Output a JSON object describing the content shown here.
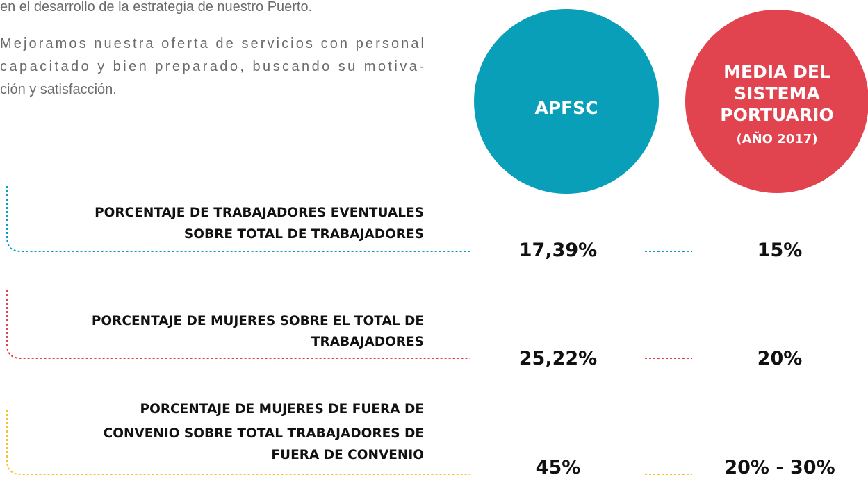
{
  "intro": {
    "cut_line": "en el desarrollo de la estrategia de nuestro Puerto.",
    "paragraph_lines": [
      "Mejoramos nuestra oferta de servicios con personal",
      "capacitado y bien preparado, buscando su motiva-",
      "ción y satisfacción."
    ]
  },
  "columns": {
    "apfsc": {
      "label": "APFSC",
      "color": "#0a9fb9"
    },
    "media": {
      "label_lines": [
        "MEDIA DEL",
        "SISTEMA",
        "PORTUARIO"
      ],
      "note": "(AÑO 2017)",
      "color": "#e1434f"
    }
  },
  "rows": [
    {
      "label_lines": [
        "PORCENTAJE DE TRABAJADORES EVENTUALES",
        "SOBRE TOTAL DE TRABAJADORES"
      ],
      "apfsc": "17,39%",
      "media": "15%",
      "color": "#0a9fb9"
    },
    {
      "label_lines": [
        "PORCENTAJE DE MUJERES SOBRE EL TOTAL DE",
        "TRABAJADORES"
      ],
      "apfsc": "25,22%",
      "media": "20%",
      "color": "#e1434f"
    },
    {
      "label_lines": [
        "PORCENTAJE DE MUJERES DE FUERA DE",
        "CONVENIO SOBRE TOTAL TRABAJADORES DE",
        "FUERA DE CONVENIO"
      ],
      "apfsc": "45%",
      "media": "20% - 30%",
      "color": "#f5c531"
    }
  ]
}
